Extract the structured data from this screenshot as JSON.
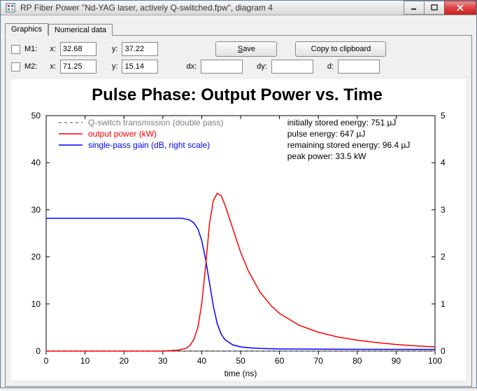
{
  "window": {
    "title": "RP Fiber Power \"Nd-YAG laser, actively Q-switched.fpw\", diagram 4"
  },
  "tabs": {
    "items": [
      "Graphics",
      "Numerical data"
    ],
    "active_index": 0
  },
  "markers": {
    "m1": {
      "label": "M1:",
      "x_label": "x:",
      "x": "32.68",
      "y_label": "y:",
      "y": "37.22"
    },
    "m2": {
      "label": "M2:",
      "x_label": "x:",
      "x": "71.25",
      "y_label": "y:",
      "y": "15.14"
    },
    "dx_label": "dx:",
    "dy_label": "dy:",
    "d_label": "d:"
  },
  "buttons": {
    "save": "Save",
    "copy": "Copy to clipboard"
  },
  "chart": {
    "type": "line",
    "title": "Pulse Phase: Output Power vs. Time",
    "title_fontsize": 24,
    "background_color": "#ffffff",
    "axis_color": "#000000",
    "x": {
      "label": "time (ns)",
      "min": 0,
      "max": 100,
      "tick_step": 10,
      "label_fontsize": 12
    },
    "y_left": {
      "min": 0,
      "max": 50,
      "tick_step": 10,
      "label_fontsize": 12
    },
    "y_right": {
      "min": 0,
      "max": 5,
      "tick_step": 1,
      "label_fontsize": 12
    },
    "legend": {
      "position": "upper-left-inside",
      "items": [
        {
          "label": "Q-switch transmission (double pass)",
          "color": "#808080",
          "dash": "4,4",
          "width": 1.5
        },
        {
          "label": "output power (kW)",
          "color": "#ff0000",
          "dash": null,
          "width": 1.5
        },
        {
          "label": "single-pass gain (dB, right scale)",
          "color": "#0000ff",
          "dash": null,
          "width": 1.5
        }
      ]
    },
    "annotations": [
      "initially stored energy: 751 µJ",
      "pulse energy: 647 µJ",
      "remaining stored energy: 96.4 µJ",
      "peak power: 33.5 kW"
    ],
    "series": {
      "qswitch": {
        "axis": "left",
        "color": "#808080",
        "dash": "4,4",
        "width": 1.5,
        "x": [
          0,
          100
        ],
        "y": [
          0,
          0
        ]
      },
      "output_power": {
        "axis": "left",
        "color": "#ff0000",
        "dash": null,
        "width": 1.5,
        "x": [
          0,
          30,
          34,
          36,
          37,
          38,
          39,
          40,
          41,
          42,
          43,
          44,
          45,
          46,
          47,
          48,
          50,
          52,
          55,
          58,
          60,
          65,
          70,
          75,
          80,
          85,
          90,
          95,
          100
        ],
        "y": [
          0,
          0,
          0.2,
          0.6,
          1.2,
          2.5,
          5,
          10,
          18,
          27,
          32,
          33.5,
          33,
          31,
          28.5,
          26,
          21,
          17,
          12.5,
          9.5,
          8,
          5.5,
          4,
          3,
          2.3,
          1.8,
          1.4,
          1.1,
          0.9
        ]
      },
      "gain": {
        "axis": "right",
        "color": "#0000ff",
        "dash": null,
        "width": 1.5,
        "x": [
          0,
          30,
          35,
          37,
          38,
          39,
          40,
          41,
          42,
          43,
          44,
          45,
          46,
          48,
          50,
          52,
          55,
          60,
          70,
          80,
          100
        ],
        "y": [
          2.82,
          2.82,
          2.82,
          2.78,
          2.72,
          2.6,
          2.35,
          1.95,
          1.45,
          0.95,
          0.58,
          0.36,
          0.24,
          0.13,
          0.09,
          0.07,
          0.055,
          0.045,
          0.04,
          0.038,
          0.035
        ]
      }
    }
  }
}
